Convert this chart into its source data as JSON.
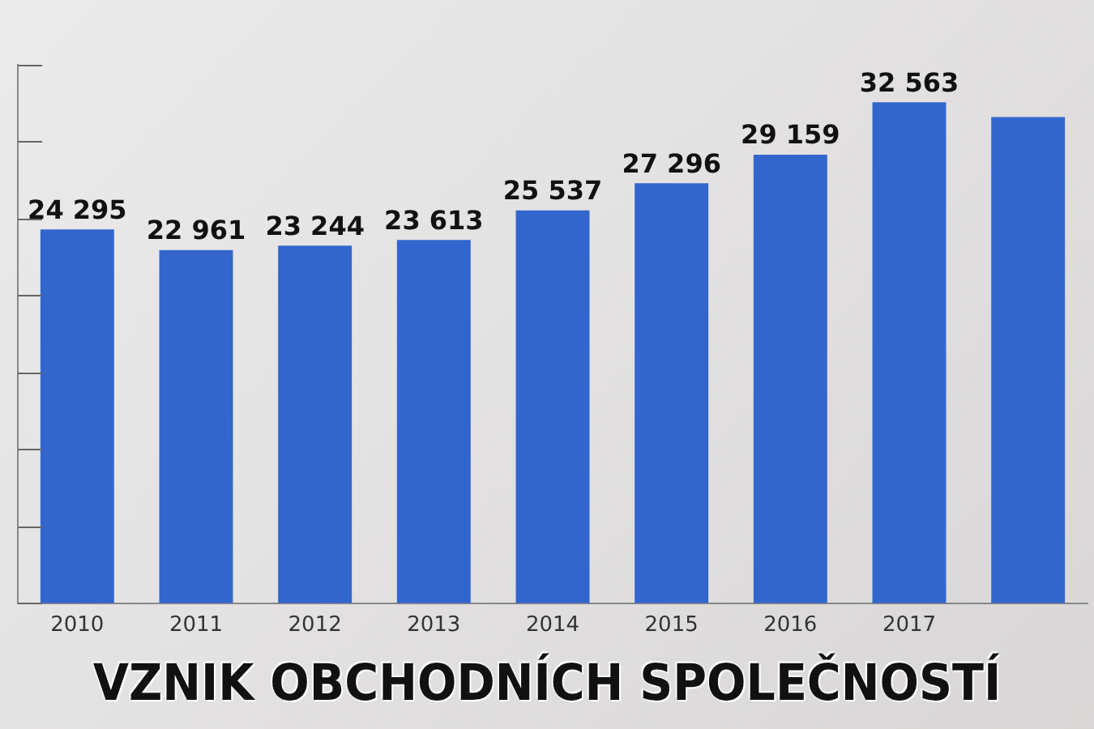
{
  "chart_data": {
    "type": "bar",
    "title": "VZNIK OBCHODNÍCH SPOLEČNOSTÍ",
    "categories": [
      "2010",
      "2011",
      "2012",
      "2013",
      "2014",
      "2015",
      "2016",
      "2017",
      null
    ],
    "values": [
      24295,
      22961,
      23244,
      23613,
      25537,
      27296,
      29159,
      32563,
      31600
    ],
    "value_labels": [
      "24 295",
      "22 961",
      "23 244",
      "23 613",
      "25 537",
      "27 296",
      "29 159",
      "32 563",
      null
    ],
    "color": "#3366cc",
    "ylim": [
      0,
      35000
    ],
    "yticks": [
      {
        "value": 0,
        "label": null
      },
      {
        "value": 5000,
        "label": null
      },
      {
        "value": 10000,
        "label": null
      },
      {
        "value": 15000,
        "label": null
      },
      {
        "value": 20000,
        "label": null
      },
      {
        "value": 25000,
        "label": null
      },
      {
        "value": 30000,
        "label": null
      },
      {
        "value": 35000,
        "label": null
      }
    ],
    "tick_labels": "x"
  }
}
